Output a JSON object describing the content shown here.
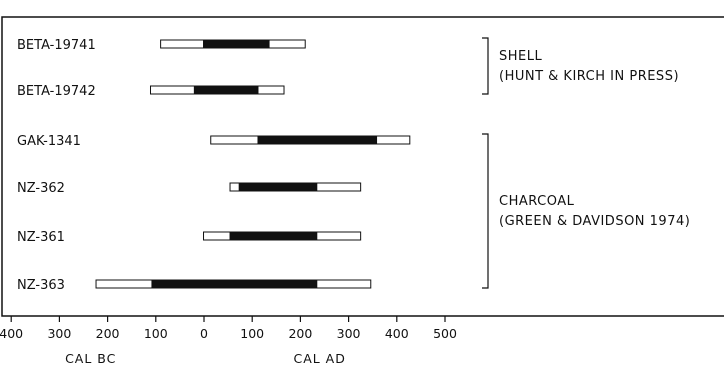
{
  "chart_data": {
    "type": "range",
    "title": "",
    "samples": [
      {
        "label": "BETA-19741",
        "outer": [
          -90,
          210
        ],
        "inner": [
          -1,
          135
        ]
      },
      {
        "label": "BETA-19742",
        "outer": [
          -111,
          166
        ],
        "inner": [
          -20,
          112
        ]
      },
      {
        "label": "GAK-1341",
        "outer": [
          14,
          427
        ],
        "inner": [
          112,
          358
        ]
      },
      {
        "label": "NZ-362",
        "outer": [
          54,
          325
        ],
        "inner": [
          73,
          234
        ]
      },
      {
        "label": "NZ-361",
        "outer": [
          -1,
          325
        ],
        "inner": [
          54,
          234
        ]
      },
      {
        "label": "NZ-363",
        "outer": [
          -224,
          346
        ],
        "inner": [
          -108,
          234
        ]
      }
    ],
    "groups": [
      {
        "lines": [
          "SHELL",
          "(HUNT & KIRCH IN PRESS)"
        ],
        "members": [
          "BETA-19741",
          "BETA-19742"
        ]
      },
      {
        "lines": [
          "CHARCOAL",
          "(GREEN & DAVIDSON 1974)"
        ],
        "members": [
          "GAK-1341",
          "NZ-362",
          "NZ-361",
          "NZ-363"
        ]
      }
    ],
    "xaxis": {
      "ticks": [
        -400,
        -300,
        -200,
        -100,
        0,
        100,
        200,
        300,
        400,
        500
      ],
      "tick_labels": [
        "400",
        "300",
        "200",
        "100",
        "0",
        "100",
        "200",
        "300",
        "400",
        "500"
      ],
      "era_labels": [
        "CAL BC",
        "CAL AD"
      ]
    },
    "xlim": [
      -400,
      500
    ]
  }
}
